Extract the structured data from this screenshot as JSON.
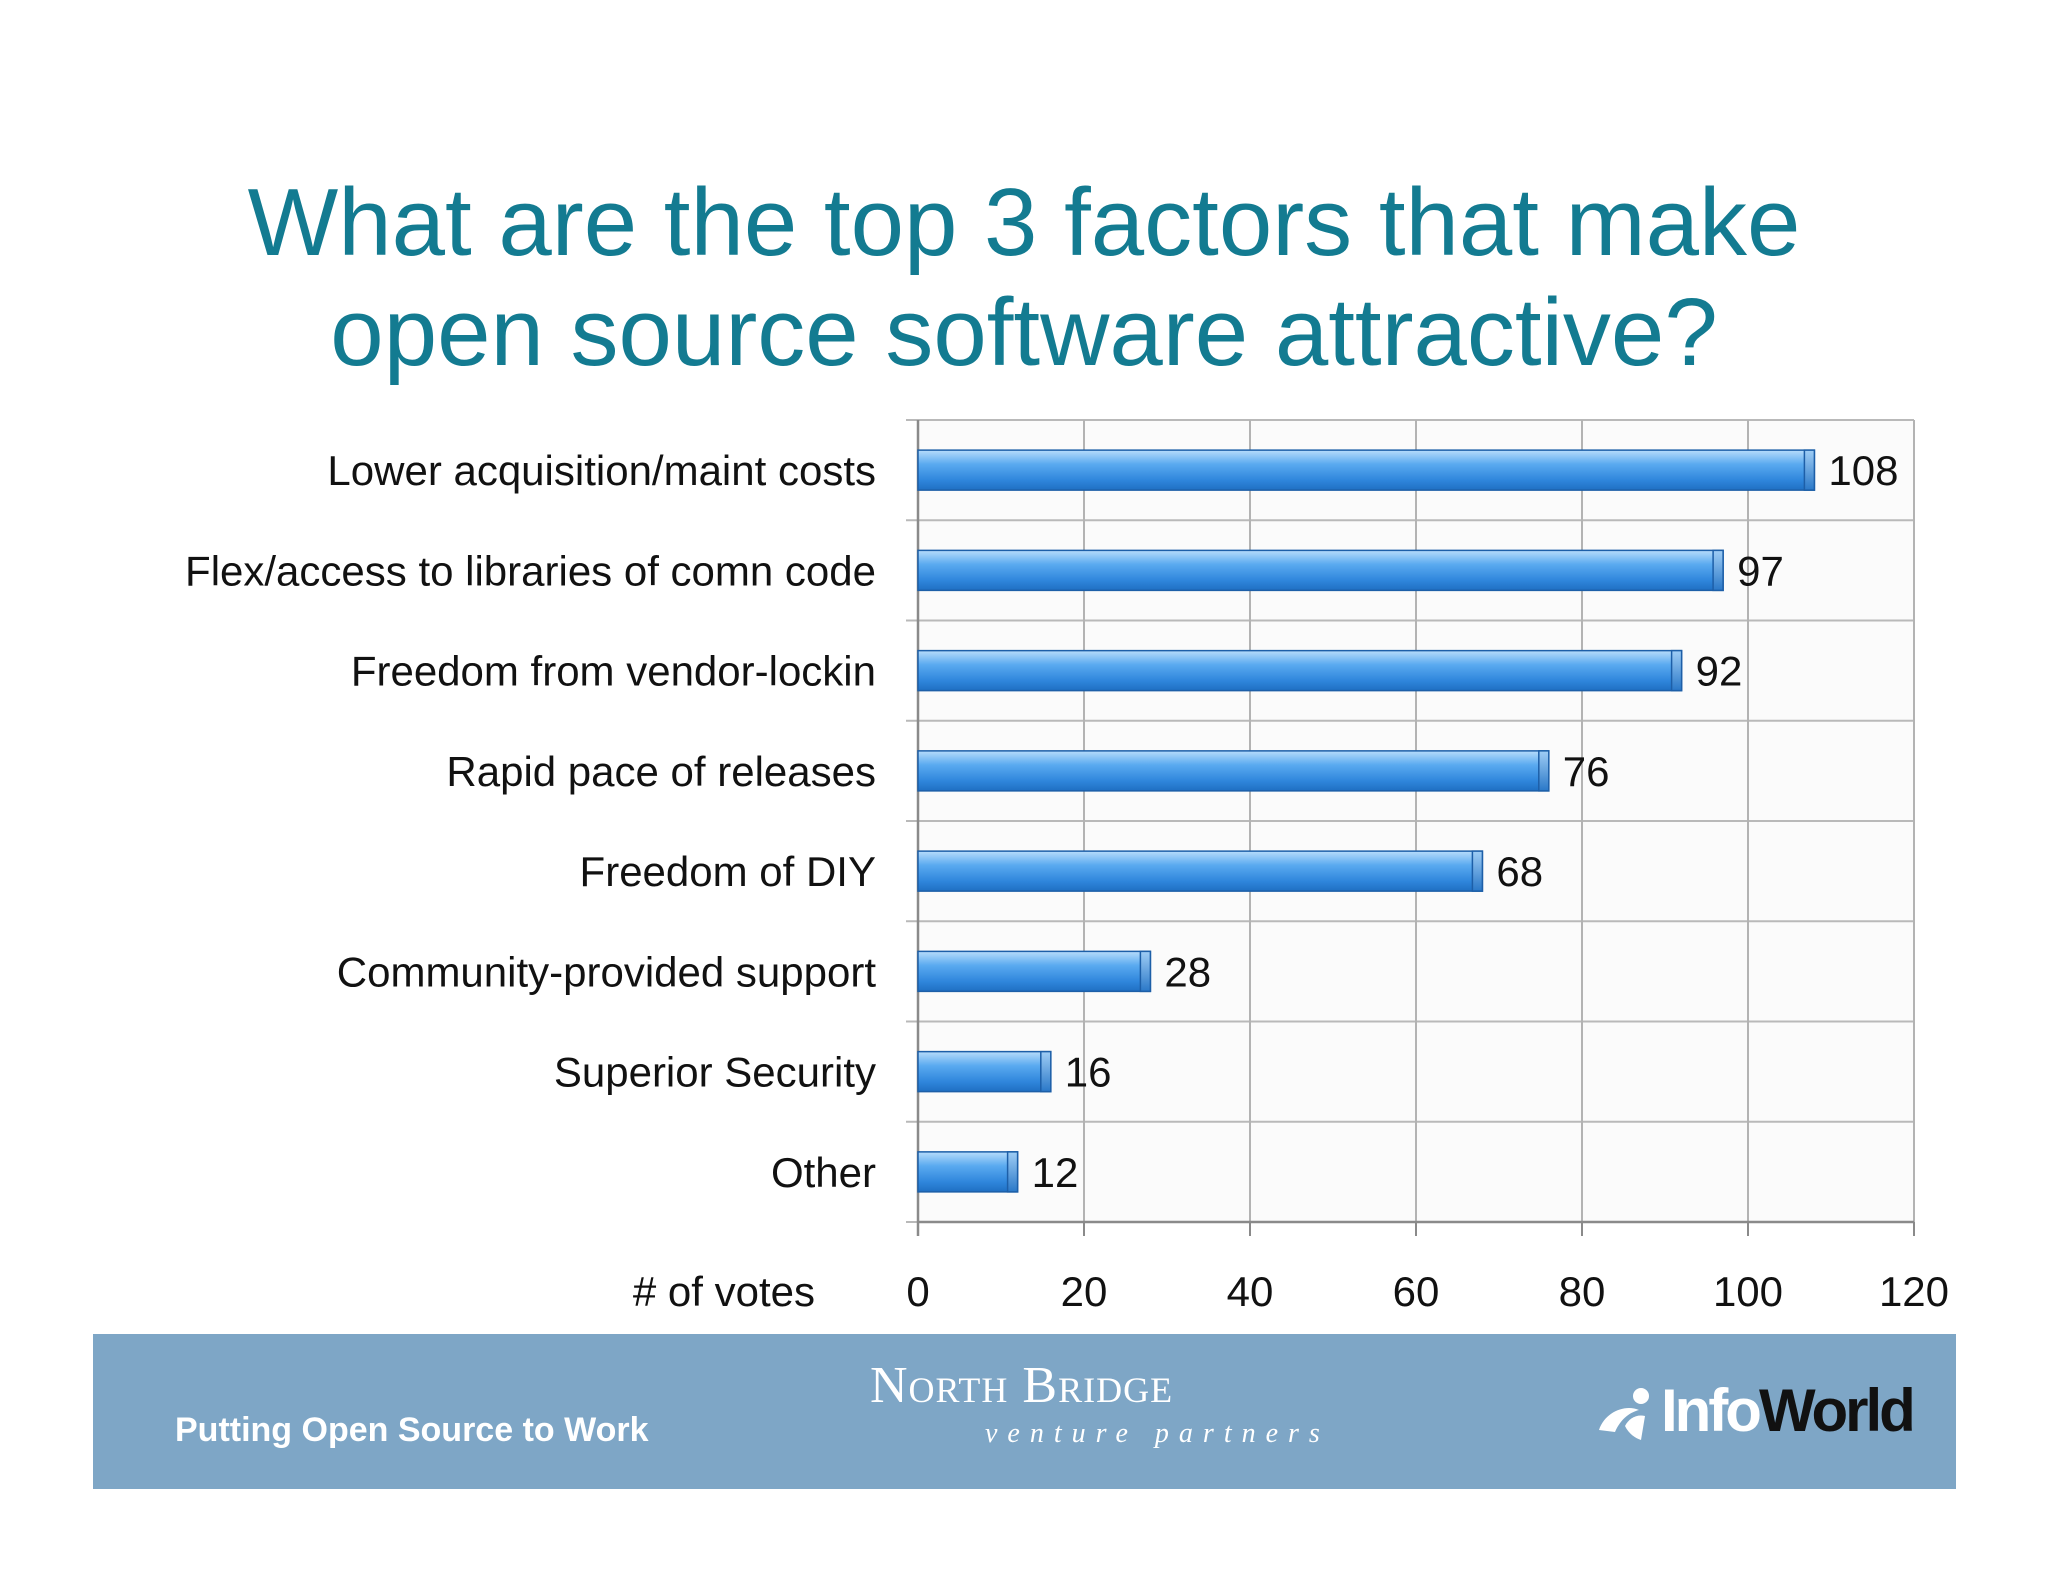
{
  "slide": {
    "title_line1": "What are the top 3 factors that make",
    "title_line2": "open source software attractive?"
  },
  "chart_data": {
    "type": "bar",
    "orientation": "horizontal",
    "categories": [
      "Lower acquisition/maint costs",
      "Flex/access to libraries of comn code",
      "Freedom from vendor-lockin",
      "Rapid pace of releases",
      "Freedom of DIY",
      "Community-provided support",
      "Superior Security",
      "Other"
    ],
    "values": [
      108,
      97,
      92,
      76,
      68,
      28,
      16,
      12
    ],
    "xlabel": "# of votes",
    "xlim": [
      0,
      120
    ],
    "xticks": [
      0,
      20,
      40,
      60,
      80,
      100,
      120
    ],
    "grid": true,
    "data_labels": true,
    "bar_color": "#3d96e6"
  },
  "footer": {
    "tagline": "Putting Open Source to Work",
    "logo_name": "North Bridge",
    "logo_sub": "venture partners",
    "brand_part1": "Info",
    "brand_part2": "World",
    "band_color": "#7ea6c6"
  }
}
